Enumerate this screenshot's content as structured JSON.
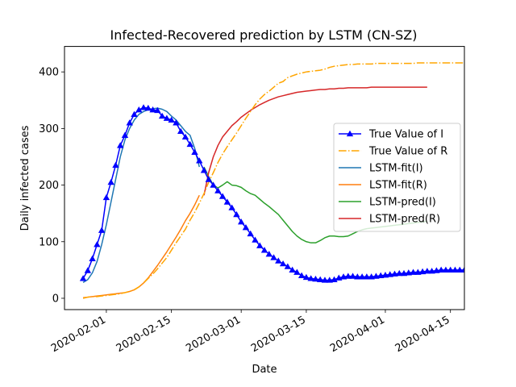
{
  "chart_data": {
    "type": "line",
    "title": "Infected-Recovered prediction by LSTM (CN-SZ)",
    "xlabel": "Date",
    "ylabel": "Daily infected cases",
    "x_start_date": "2020-01-27",
    "x_range": [
      "2020-01-23",
      "2020-04-18"
    ],
    "ylim": [
      -20,
      445
    ],
    "x_ticks": [
      "2020-02-01",
      "2020-02-15",
      "2020-03-01",
      "2020-03-15",
      "2020-04-01",
      "2020-04-15"
    ],
    "y_ticks": [
      0,
      100,
      200,
      300,
      400
    ],
    "grid": false,
    "legend": "center-right",
    "series": [
      {
        "name": "True Value of I",
        "color": "#0000ff",
        "style": "solid-triangle",
        "start_day": 0,
        "values": [
          35,
          49,
          70,
          95,
          120,
          178,
          205,
          235,
          270,
          288,
          310,
          325,
          333,
          337,
          336,
          333,
          332,
          322,
          318,
          315,
          310,
          295,
          285,
          272,
          258,
          243,
          226,
          210,
          200,
          190,
          180,
          170,
          160,
          148,
          135,
          125,
          114,
          103,
          93,
          85,
          78,
          72,
          66,
          61,
          56,
          50,
          46,
          40,
          37,
          35,
          34,
          33,
          32,
          32,
          33,
          36,
          38,
          39,
          39,
          38,
          38,
          38,
          38,
          39,
          40,
          41,
          42,
          43,
          44,
          44,
          45,
          46,
          46,
          47,
          48,
          48,
          49,
          50,
          50,
          50,
          50,
          50,
          50,
          44,
          43
        ]
      },
      {
        "name": "True Value of R",
        "color": "#ffa500",
        "style": "dashdot",
        "start_day": 0,
        "values": [
          0,
          2,
          3,
          3,
          4,
          5,
          6,
          7,
          8,
          10,
          12,
          15,
          20,
          27,
          35,
          43,
          52,
          62,
          72,
          85,
          98,
          110,
          122,
          138,
          152,
          168,
          185,
          205,
          222,
          240,
          255,
          268,
          280,
          292,
          305,
          318,
          330,
          342,
          352,
          360,
          366,
          373,
          380,
          383,
          390,
          393,
          396,
          398,
          400,
          401,
          402,
          403,
          405,
          408,
          410,
          411,
          412,
          413,
          413,
          414,
          414,
          414,
          414,
          415,
          415,
          415,
          415,
          415,
          415,
          415,
          415,
          415,
          416,
          416,
          416,
          416,
          416,
          416,
          416,
          416,
          416,
          416,
          416,
          420,
          424
        ]
      },
      {
        "name": "LSTM-fit(I)",
        "color": "#1f77b4",
        "style": "solid",
        "start_day": 0,
        "values": [
          28,
          33,
          45,
          65,
          95,
          130,
          170,
          210,
          250,
          280,
          300,
          315,
          325,
          330,
          333,
          335,
          336,
          334,
          330,
          322,
          315,
          305,
          295,
          288,
          265,
          232
        ]
      },
      {
        "name": "LSTM-fit(R)",
        "color": "#ff7f0e",
        "style": "solid",
        "start_day": 0,
        "values": [
          1,
          2,
          3,
          4,
          5,
          6,
          7,
          8,
          9,
          10,
          12,
          15,
          20,
          27,
          36,
          47,
          58,
          70,
          82,
          95,
          108,
          122,
          137,
          150,
          165,
          182
        ]
      },
      {
        "name": "LSTM-pred(I)",
        "color": "#2ca02c",
        "style": "solid",
        "start_day": 26,
        "values": [
          232,
          215,
          200,
          195,
          200,
          206,
          200,
          199,
          196,
          190,
          185,
          182,
          175,
          168,
          162,
          155,
          148,
          138,
          128,
          118,
          110,
          104,
          100,
          98,
          98,
          102,
          107,
          110,
          110,
          109,
          109,
          110,
          114,
          118,
          121,
          123,
          124,
          125,
          126,
          127,
          128,
          129,
          130,
          131,
          132,
          133,
          134,
          135,
          136
        ]
      },
      {
        "name": "LSTM-pred(R)",
        "color": "#d62728",
        "style": "solid",
        "start_day": 26,
        "values": [
          182,
          222,
          250,
          270,
          285,
          295,
          305,
          312,
          320,
          326,
          332,
          337,
          342,
          346,
          350,
          353,
          356,
          358,
          360,
          362,
          364,
          365,
          366,
          367,
          368,
          369,
          369,
          370,
          370,
          371,
          371,
          372,
          372,
          372,
          372,
          372,
          373,
          373,
          373,
          373,
          373,
          373,
          373,
          373,
          373,
          373,
          373,
          373,
          373
        ]
      }
    ]
  }
}
